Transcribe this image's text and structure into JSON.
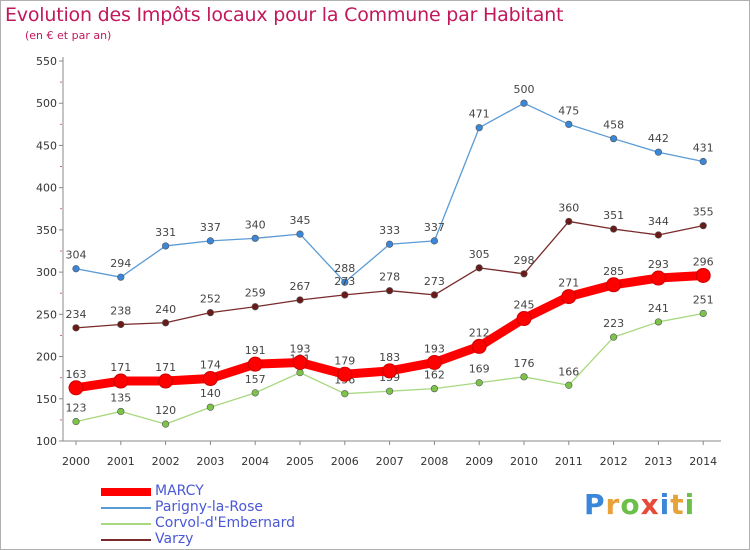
{
  "header": {
    "title": "Evolution des Impôts locaux pour la Commune par Habitant",
    "subtitle": "(en € et par an)"
  },
  "brand": {
    "letters": [
      "P",
      "r",
      "o",
      "x",
      "i",
      "t",
      "i"
    ],
    "colors": [
      "#3a86d9",
      "#e8a23a",
      "#6cc04a",
      "#e84a3a",
      "#3a86d9",
      "#e8a23a",
      "#6cc04a"
    ]
  },
  "chart_data": {
    "type": "line",
    "x": [
      "2000",
      "2001",
      "2002",
      "2003",
      "2004",
      "2005",
      "2006",
      "2007",
      "2008",
      "2009",
      "2010",
      "2011",
      "2012",
      "2013",
      "2014"
    ],
    "ylim": [
      100,
      550
    ],
    "yticks": [
      100,
      150,
      200,
      250,
      300,
      350,
      400,
      450,
      500,
      550
    ],
    "grid": false,
    "legend_position": "bottom-left",
    "series": [
      {
        "name": "Parigny-la-Rose",
        "color": "#5b9bd5",
        "marker": "#3a86d9",
        "values": [
          304,
          294,
          331,
          337,
          340,
          345,
          288,
          333,
          337,
          471,
          500,
          475,
          458,
          442,
          431
        ]
      },
      {
        "name": "Varzy",
        "color": "#7a2a2a",
        "marker": "#6b1a1a",
        "values": [
          234,
          238,
          240,
          252,
          259,
          267,
          273,
          278,
          273,
          305,
          298,
          360,
          351,
          344,
          355
        ]
      },
      {
        "name": "Corvol-d'Embernard",
        "color": "#a8d880",
        "marker": "#7cc34a",
        "values": [
          123,
          135,
          120,
          140,
          157,
          181,
          156,
          159,
          162,
          169,
          176,
          166,
          223,
          241,
          251
        ]
      },
      {
        "name": "MARCY",
        "color": "#ff0000",
        "marker": "#ff0000",
        "values": [
          163,
          171,
          171,
          174,
          191,
          193,
          179,
          183,
          193,
          212,
          245,
          271,
          285,
          293,
          296
        ]
      }
    ],
    "legend_order": [
      "MARCY",
      "Parigny-la-Rose",
      "Corvol-d'Embernard",
      "Varzy"
    ]
  }
}
